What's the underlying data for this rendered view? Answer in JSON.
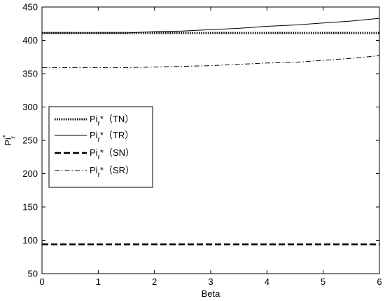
{
  "chart_data": {
    "type": "line",
    "xlabel": "Beta",
    "ylabel_main": "Pi",
    "ylabel_sub": "r",
    "ylabel_sup": "*",
    "xlim": [
      0,
      6
    ],
    "ylim": [
      50,
      450
    ],
    "xticks": [
      0,
      1,
      2,
      3,
      4,
      5,
      6
    ],
    "yticks": [
      50,
      100,
      150,
      200,
      250,
      300,
      350,
      400,
      450
    ],
    "grid": false,
    "legend_position": "center-left",
    "series": [
      {
        "name_main": "Pi",
        "name_sub": "r",
        "name_suffix": "*（TN）",
        "style": "dotted-thick",
        "color": "#000000",
        "x": [
          0,
          1,
          2,
          3,
          4,
          5,
          6
        ],
        "y": [
          411,
          411,
          411,
          411,
          411,
          411,
          411
        ]
      },
      {
        "name_main": "Pi",
        "name_sub": "r",
        "name_suffix": "*（TR）",
        "style": "solid",
        "color": "#000000",
        "x": [
          0,
          1,
          1.5,
          2,
          2.5,
          3,
          3.5,
          4,
          4.5,
          5,
          5.5,
          6
        ],
        "y": [
          411,
          411,
          411,
          413,
          414,
          416,
          418,
          421,
          423,
          426,
          429,
          433
        ]
      },
      {
        "name_main": "Pi",
        "name_sub": "r",
        "name_suffix": "*（SN）",
        "style": "dashed-thick",
        "color": "#000000",
        "x": [
          0,
          1,
          2,
          3,
          4,
          5,
          6
        ],
        "y": [
          94,
          94,
          94,
          94,
          94,
          94,
          94
        ]
      },
      {
        "name_main": "Pi",
        "name_sub": "r",
        "name_suffix": "*（SR）",
        "style": "dashdot",
        "color": "#000000",
        "x": [
          0,
          1,
          1.5,
          2,
          2.5,
          3,
          3.5,
          4,
          4.5,
          5,
          5.5,
          6
        ],
        "y": [
          359,
          359,
          359,
          360,
          361,
          362,
          364,
          366,
          367,
          370,
          373,
          377
        ]
      }
    ]
  }
}
